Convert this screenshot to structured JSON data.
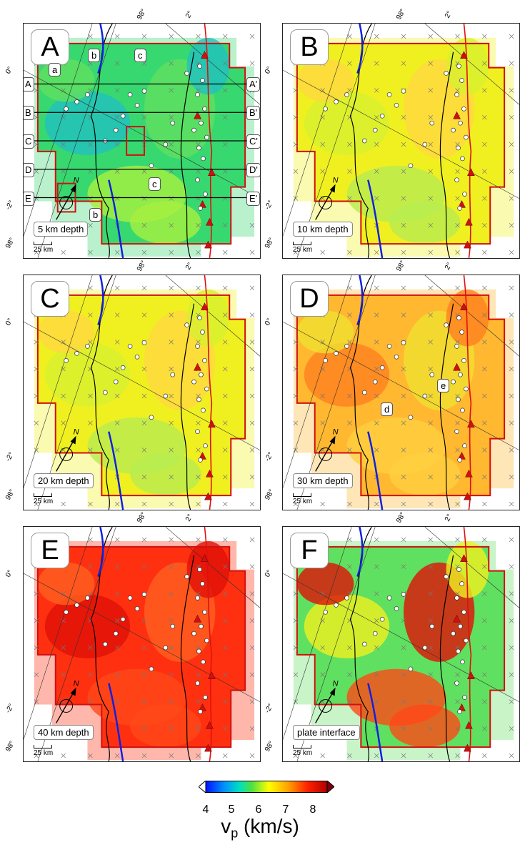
{
  "panels": [
    {
      "letter": "A",
      "depth_label": "5 km depth",
      "scale": "25 km",
      "tick_lon": "98°",
      "tick_lat0": "0°",
      "tick_lat2": "2°",
      "tick_lat_neg2": "-2°",
      "tick_lon_left": "98°",
      "base": "green"
    },
    {
      "letter": "B",
      "depth_label": "10 km depth",
      "scale": "25 km",
      "tick_lon": "98°",
      "tick_lat0": "0°",
      "tick_lat2": "2°",
      "tick_lat_neg2": "-2°",
      "tick_lon_left": "98°",
      "base": "yellow"
    },
    {
      "letter": "C",
      "depth_label": "20 km depth",
      "scale": "25 km",
      "tick_lon": "98°",
      "tick_lat0": "0°",
      "tick_lat2": "2°",
      "tick_lat_neg2": "-2°",
      "tick_lon_left": "98°",
      "base": "yellow"
    },
    {
      "letter": "D",
      "depth_label": "30 km depth",
      "scale": "25 km",
      "tick_lon": "98°",
      "tick_lat0": "0°",
      "tick_lat2": "2°",
      "tick_lat_neg2": "-2°",
      "tick_lon_left": "98°",
      "base": "orange"
    },
    {
      "letter": "E",
      "depth_label": "40 km depth",
      "scale": "25 km",
      "tick_lon": "98°",
      "tick_lat0": "0°",
      "tick_lat2": "2°",
      "tick_lat_neg2": "-2°",
      "tick_lon_left": "98°",
      "base": "red"
    },
    {
      "letter": "F",
      "depth_label": "plate interface",
      "scale": "25 km",
      "tick_lon": "98°",
      "tick_lat0": "0°",
      "tick_lat2": "2°",
      "tick_lat_neg2": "-2°",
      "tick_lon_left": "98°",
      "base": "mixed"
    }
  ],
  "profiles": {
    "left": [
      "A",
      "B",
      "C",
      "D",
      "E"
    ],
    "right": [
      "A'",
      "B'",
      "C'",
      "D'",
      "E'"
    ]
  },
  "anomaly_labels_A": [
    "a",
    "b",
    "c",
    "c",
    "b"
  ],
  "anomaly_labels_D": [
    "d",
    "e"
  ],
  "north_label": "N",
  "colorbar": {
    "ticks": [
      "4",
      "5",
      "6",
      "7",
      "8"
    ],
    "title": "v",
    "title_sub": "p",
    "title_units": " (km/s)",
    "colors": [
      "#0000ff",
      "#00aaff",
      "#00e0a0",
      "#40e040",
      "#ffff00",
      "#ffa000",
      "#ff3000",
      "#c00000"
    ]
  }
}
